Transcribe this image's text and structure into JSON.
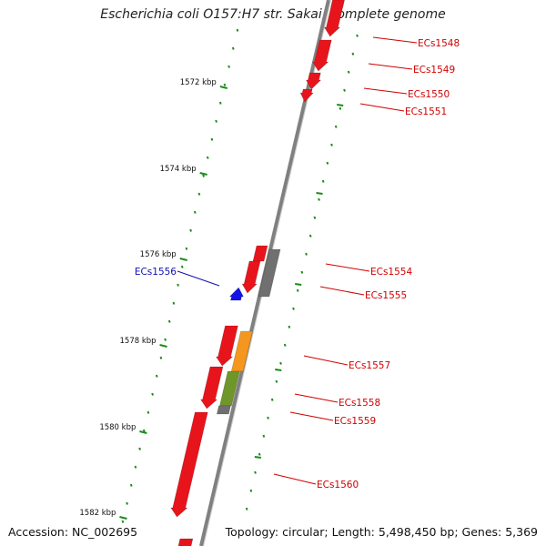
{
  "title": "Escherichia coli O157:H7 str. Sakai, complete genome",
  "footer": {
    "accession": "Accession: NC_002695",
    "summary": "Topology: circular; Length: 5,498,450 bp; Genes: 5,369"
  },
  "colors": {
    "backbone": "#808080",
    "gene_red": "#e8141c",
    "gene_grey": "#707070",
    "gene_orange": "#f5961e",
    "gene_olive": "#6e9628",
    "gene_blue": "#1414e6",
    "tick": "#1a8c1a",
    "label_red": "#d00000",
    "label_blue": "#1010b0"
  },
  "ticks": [
    {
      "label": "1572 kbp"
    },
    {
      "label": "1574 kbp"
    },
    {
      "label": "1576 kbp"
    },
    {
      "label": "1578 kbp"
    },
    {
      "label": "1580 kbp"
    },
    {
      "label": "1582 kbp"
    }
  ],
  "gene_labels": [
    {
      "text": "ECs1548",
      "color": "red"
    },
    {
      "text": "ECs1549",
      "color": "red"
    },
    {
      "text": "ECs1550",
      "color": "red"
    },
    {
      "text": "ECs1551",
      "color": "red"
    },
    {
      "text": "ECs1554",
      "color": "red"
    },
    {
      "text": "ECs1555",
      "color": "red"
    },
    {
      "text": "ECs1556",
      "color": "blue"
    },
    {
      "text": "ECs1557",
      "color": "red"
    },
    {
      "text": "ECs1558",
      "color": "red"
    },
    {
      "text": "ECs1559",
      "color": "red"
    },
    {
      "text": "ECs1560",
      "color": "red"
    }
  ]
}
